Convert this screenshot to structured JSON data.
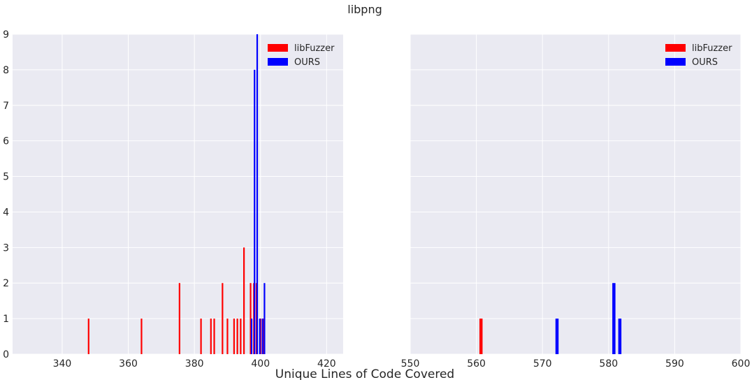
{
  "title": "libpng",
  "xlabel": "Unique Lines of Code Covered",
  "colors": {
    "background": "#EAEAF2",
    "grid": "#FFFFFF",
    "libFuzzer": "#FF0000",
    "OURS": "#0000FF"
  },
  "chart_data": [
    {
      "type": "bar",
      "title": "libpng",
      "xlabel": "Unique Lines of Code Covered",
      "xlim": [
        325,
        425
      ],
      "ylim": [
        0,
        9
      ],
      "xticks": [
        "340",
        "360",
        "380",
        "400",
        "420"
      ],
      "xtick_values": [
        340,
        360,
        380,
        400,
        420
      ],
      "yticks": [
        "0",
        "1",
        "2",
        "3",
        "4",
        "5",
        "6",
        "7",
        "8",
        "9"
      ],
      "yticks_values": [
        0,
        1,
        2,
        3,
        4,
        5,
        6,
        7,
        8,
        9
      ],
      "grid": true,
      "legend": "top-right",
      "series": [
        {
          "name": "libFuzzer",
          "color": "#FF0000",
          "x": [
            348,
            364,
            375.5,
            382,
            385,
            386,
            388.5,
            390,
            392,
            393,
            394,
            395,
            397,
            398,
            398.8,
            400,
            400.8
          ],
          "y": [
            1,
            1,
            2,
            1,
            1,
            1,
            2,
            1,
            1,
            1,
            1,
            3,
            2,
            2,
            2,
            1,
            1
          ]
        },
        {
          "name": "OURS",
          "color": "#0000FF",
          "x": [
            397.3,
            398.2,
            399.0,
            399.8,
            400.6,
            401.2
          ],
          "y": [
            1,
            8,
            9,
            1,
            1,
            2
          ]
        }
      ]
    },
    {
      "type": "bar",
      "xlim": [
        550,
        600
      ],
      "ylim": [
        0,
        9
      ],
      "xticks": [
        "550",
        "560",
        "570",
        "580",
        "590",
        "600"
      ],
      "xtick_values": [
        550,
        560,
        570,
        580,
        590,
        600
      ],
      "grid": true,
      "legend": "top-right",
      "series": [
        {
          "name": "libFuzzer",
          "color": "#FF0000",
          "x": [
            560.7
          ],
          "y": [
            1
          ]
        },
        {
          "name": "OURS",
          "color": "#0000FF",
          "x": [
            572.2,
            580.8,
            581.7
          ],
          "y": [
            1,
            2,
            1
          ]
        }
      ]
    }
  ]
}
